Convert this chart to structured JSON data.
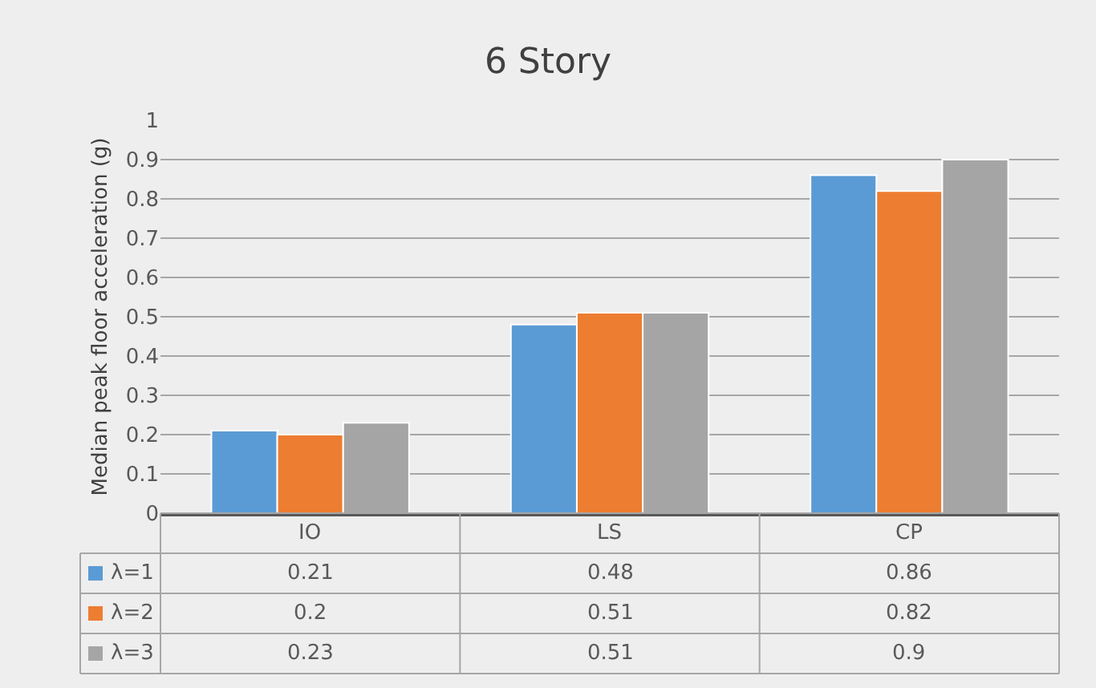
{
  "chart_data": {
    "type": "bar",
    "title": "6 Story",
    "ylabel": "Median peak floor acceleration (g)",
    "categories": [
      "IO",
      "LS",
      "CP"
    ],
    "series": [
      {
        "name": "λ=1",
        "color": "#5b9bd5",
        "values": [
          0.21,
          0.48,
          0.86
        ]
      },
      {
        "name": "λ=2",
        "color": "#ed7d31",
        "values": [
          0.2,
          0.51,
          0.82
        ]
      },
      {
        "name": "λ=3",
        "color": "#a5a5a5",
        "values": [
          0.23,
          0.51,
          0.9
        ]
      }
    ],
    "ylim": [
      0,
      1
    ],
    "yticks": [
      0,
      0.1,
      0.2,
      0.3,
      0.4,
      0.5,
      0.6,
      0.7,
      0.8,
      0.9,
      1
    ],
    "grid": "y",
    "legend": "bottom",
    "data_labels": true
  }
}
